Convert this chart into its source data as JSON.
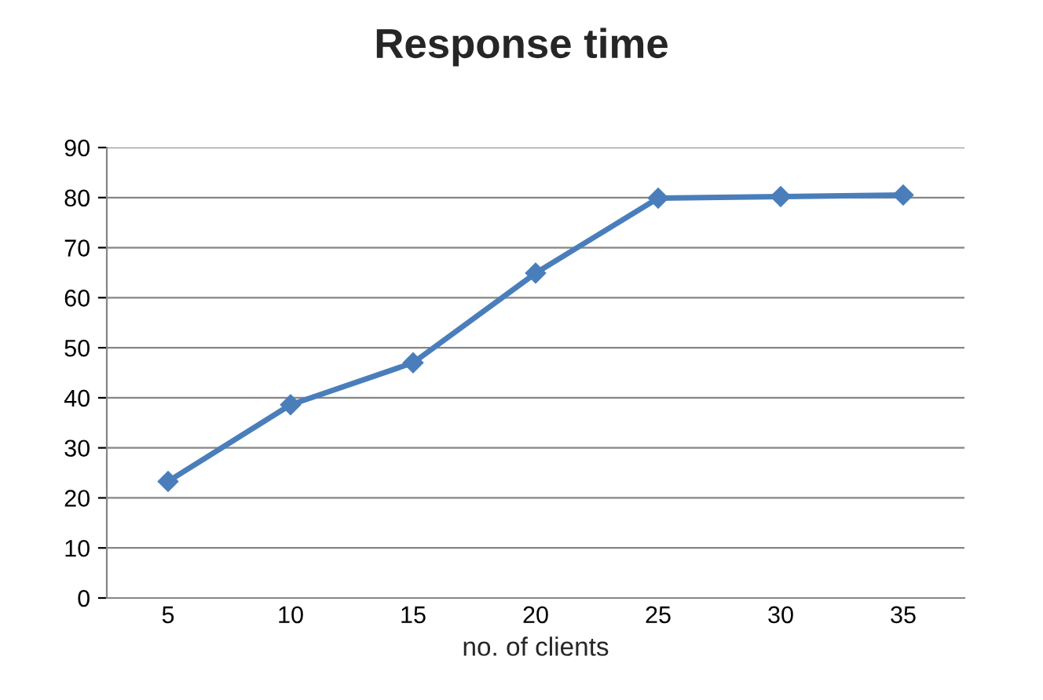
{
  "chart_data": {
    "type": "line",
    "title": "Response time",
    "xlabel": "no. of clients",
    "categories": [
      "5",
      "10",
      "15",
      "20",
      "25",
      "30",
      "35"
    ],
    "series": [
      {
        "color": "#4a7ebb",
        "values": [
          23.3,
          38.6,
          47,
          64.9,
          79.9,
          80.2,
          80.5
        ]
      }
    ],
    "ylim": [
      0,
      90
    ],
    "yticks": [
      0,
      10,
      20,
      30,
      40,
      50,
      60,
      70,
      80,
      90
    ],
    "grid": "y",
    "marker": "diamond",
    "line_style": "solid"
  }
}
